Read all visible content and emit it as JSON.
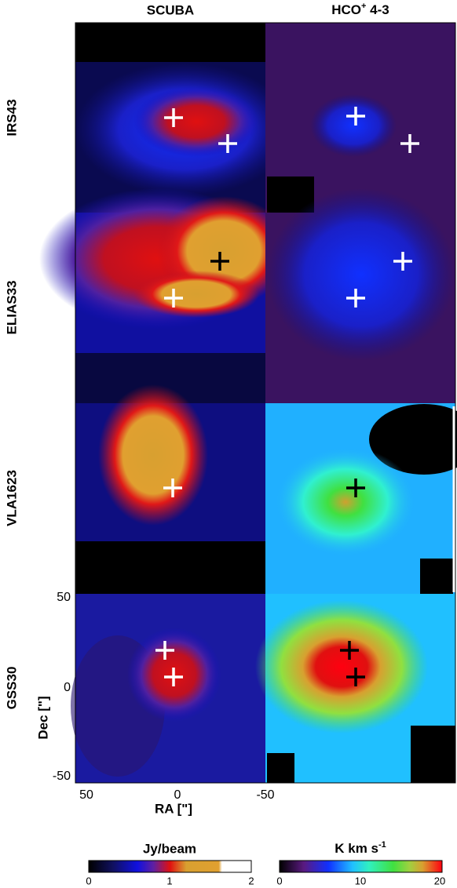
{
  "columns": [
    {
      "text": "SCUBA"
    },
    {
      "parts": [
        "HCO",
        "+",
        " 4-3"
      ]
    }
  ],
  "rows": [
    "IRS43",
    "ELIAS33",
    "VLA1623",
    "GSS30"
  ],
  "axes": {
    "y_label": "Dec [\"]",
    "x_label": "RA [\"]",
    "y_ticks": [
      "50",
      "0",
      "-50"
    ],
    "x_ticks": [
      "50",
      "0",
      "-50"
    ]
  },
  "colorbars": [
    {
      "label_parts": [
        "Jy/beam"
      ],
      "ticks": [
        "0",
        "1",
        "2"
      ]
    },
    {
      "label_parts": [
        "K km s",
        "-1"
      ],
      "ticks": [
        "0",
        "10",
        "20"
      ]
    }
  ]
}
